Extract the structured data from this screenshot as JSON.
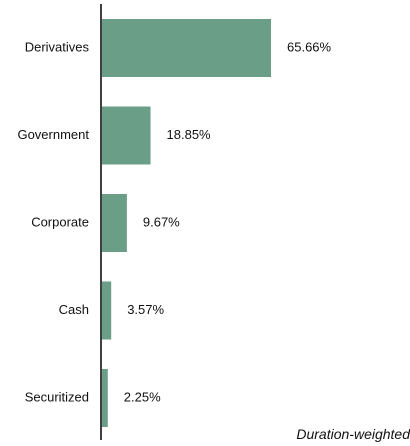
{
  "chart_data": {
    "type": "bar",
    "orientation": "horizontal",
    "categories": [
      "Derivatives",
      "Government",
      "Corporate",
      "Cash",
      "Securitized"
    ],
    "values": [
      65.66,
      18.85,
      9.67,
      3.57,
      2.25
    ],
    "value_labels": [
      "65.66%",
      "18.85%",
      "9.67%",
      "3.57%",
      "2.25%"
    ],
    "unit": "%",
    "xlim": [
      0,
      100
    ],
    "grid": false,
    "legend": "none",
    "bar_color": "#6a9e87",
    "note": "Duration-weighted"
  }
}
